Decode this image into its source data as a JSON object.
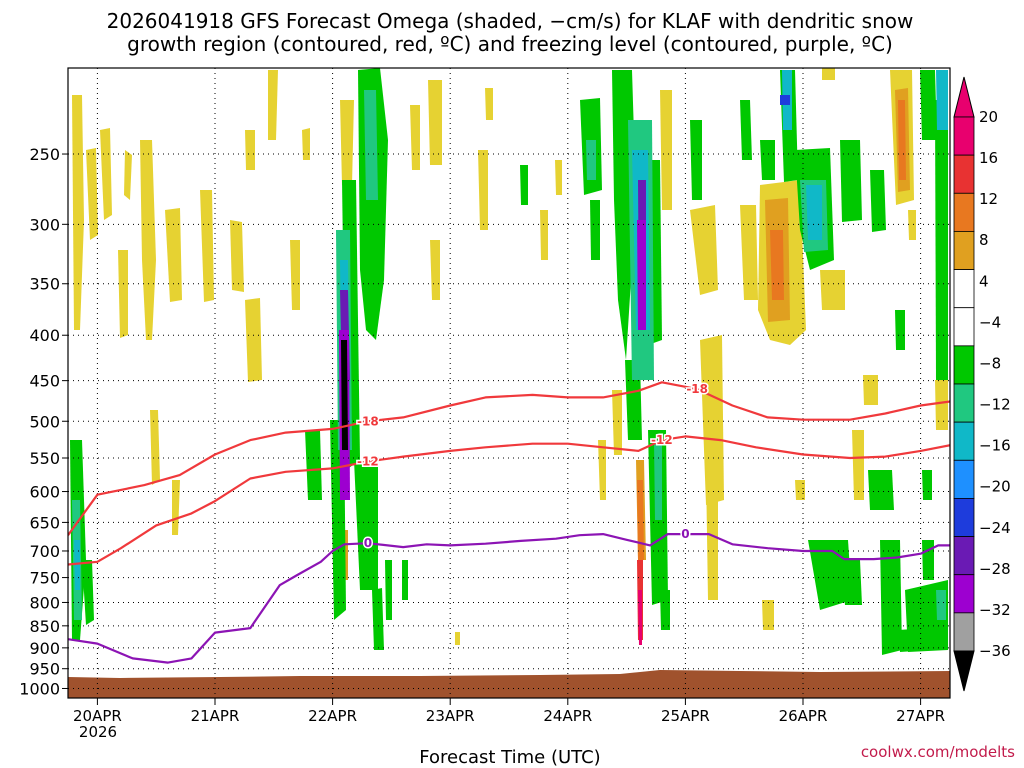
{
  "chart_data": {
    "type": "heatmap",
    "title_line1": "2026041918 GFS Forecast Omega (shaded, −cm/s) for KLAF with dendritic snow",
    "title_line2": "growth region (contoured, red, ºC) and freezing level (contoured, purple, ºC)",
    "xlabel": "Forecast Time (UTC)",
    "ylabel": "",
    "credit": "coolwx.com/modelts",
    "x_ticks": [
      {
        "label": "20APR",
        "day": 20
      },
      {
        "label": "21APR",
        "day": 21
      },
      {
        "label": "22APR",
        "day": 22
      },
      {
        "label": "23APR",
        "day": 23
      },
      {
        "label": "24APR",
        "day": 24
      },
      {
        "label": "25APR",
        "day": 25
      },
      {
        "label": "26APR",
        "day": 26
      },
      {
        "label": "27APR",
        "day": 27
      }
    ],
    "x_year_label": "2026",
    "xlim": [
      19.75,
      27.25
    ],
    "y_ticks": [
      250,
      300,
      350,
      400,
      450,
      500,
      550,
      600,
      650,
      700,
      750,
      800,
      850,
      900,
      950,
      1000
    ],
    "ylim": [
      1025,
      200
    ],
    "y_log_scale": true,
    "grid": true,
    "colorbar": {
      "labels": [
        "20",
        "16",
        "12",
        "8",
        "4",
        "−4",
        "−8",
        "−12",
        "−16",
        "−20",
        "−24",
        "−28",
        "−32",
        "−36"
      ],
      "colors": [
        "#f0f0f0",
        "#e8006e",
        "#e83232",
        "#e87820",
        "#e0a020",
        "#e6d232",
        "#ffffff",
        "#00c800",
        "#20c880",
        "#10b8c8",
        "#1e90ff",
        "#1e3cdc",
        "#6a1ab4",
        "#9d00d0",
        "#a0a0a0",
        "#000000"
      ]
    },
    "contours": [
      {
        "label": "-18",
        "color": "#f0393c",
        "points": [
          [
            19.75,
            672
          ],
          [
            20.0,
            605
          ],
          [
            20.4,
            590
          ],
          [
            20.7,
            575
          ],
          [
            21.0,
            545
          ],
          [
            21.3,
            525
          ],
          [
            21.6,
            515
          ],
          [
            22.0,
            510
          ],
          [
            22.3,
            500
          ],
          [
            22.6,
            495
          ],
          [
            23.0,
            480
          ],
          [
            23.3,
            470
          ],
          [
            23.7,
            467
          ],
          [
            24.0,
            470
          ],
          [
            24.3,
            470
          ],
          [
            24.6,
            462
          ],
          [
            24.8,
            452
          ],
          [
            25.1,
            460
          ],
          [
            25.4,
            480
          ],
          [
            25.7,
            495
          ],
          [
            26.0,
            498
          ],
          [
            26.4,
            498
          ],
          [
            26.7,
            490
          ],
          [
            27.0,
            480
          ],
          [
            27.25,
            475
          ]
        ]
      },
      {
        "label": "-12",
        "color": "#f0393c",
        "points": [
          [
            19.75,
            725
          ],
          [
            20.0,
            720
          ],
          [
            20.2,
            695
          ],
          [
            20.5,
            655
          ],
          [
            20.8,
            635
          ],
          [
            21.0,
            615
          ],
          [
            21.3,
            580
          ],
          [
            21.6,
            570
          ],
          [
            22.0,
            565
          ],
          [
            22.3,
            555
          ],
          [
            22.6,
            548
          ],
          [
            23.0,
            540
          ],
          [
            23.3,
            535
          ],
          [
            23.7,
            530
          ],
          [
            24.0,
            530
          ],
          [
            24.3,
            535
          ],
          [
            24.6,
            540
          ],
          [
            24.8,
            525
          ],
          [
            25.0,
            520
          ],
          [
            25.3,
            525
          ],
          [
            25.6,
            535
          ],
          [
            26.0,
            545
          ],
          [
            26.4,
            550
          ],
          [
            26.7,
            548
          ],
          [
            27.0,
            540
          ],
          [
            27.25,
            532
          ]
        ]
      },
      {
        "label": "0",
        "color": "#8c14b4",
        "points": [
          [
            19.75,
            880
          ],
          [
            20.0,
            890
          ],
          [
            20.3,
            925
          ],
          [
            20.6,
            935
          ],
          [
            20.8,
            925
          ],
          [
            21.0,
            865
          ],
          [
            21.3,
            855
          ],
          [
            21.55,
            765
          ],
          [
            21.7,
            745
          ],
          [
            21.9,
            720
          ],
          [
            22.0,
            700
          ],
          [
            22.1,
            688
          ],
          [
            22.3,
            686
          ],
          [
            22.6,
            693
          ],
          [
            22.8,
            688
          ],
          [
            23.0,
            690
          ],
          [
            23.3,
            687
          ],
          [
            23.6,
            682
          ],
          [
            23.9,
            678
          ],
          [
            24.1,
            672
          ],
          [
            24.3,
            670
          ],
          [
            24.5,
            680
          ],
          [
            24.7,
            690
          ],
          [
            24.85,
            670
          ],
          [
            25.0,
            670
          ],
          [
            25.2,
            670
          ],
          [
            25.4,
            688
          ],
          [
            25.7,
            695
          ],
          [
            26.0,
            700
          ],
          [
            26.25,
            700
          ],
          [
            26.35,
            715
          ],
          [
            26.6,
            715
          ],
          [
            26.8,
            712
          ],
          [
            27.0,
            705
          ],
          [
            27.15,
            690
          ],
          [
            27.25,
            690
          ]
        ]
      }
    ]
  }
}
